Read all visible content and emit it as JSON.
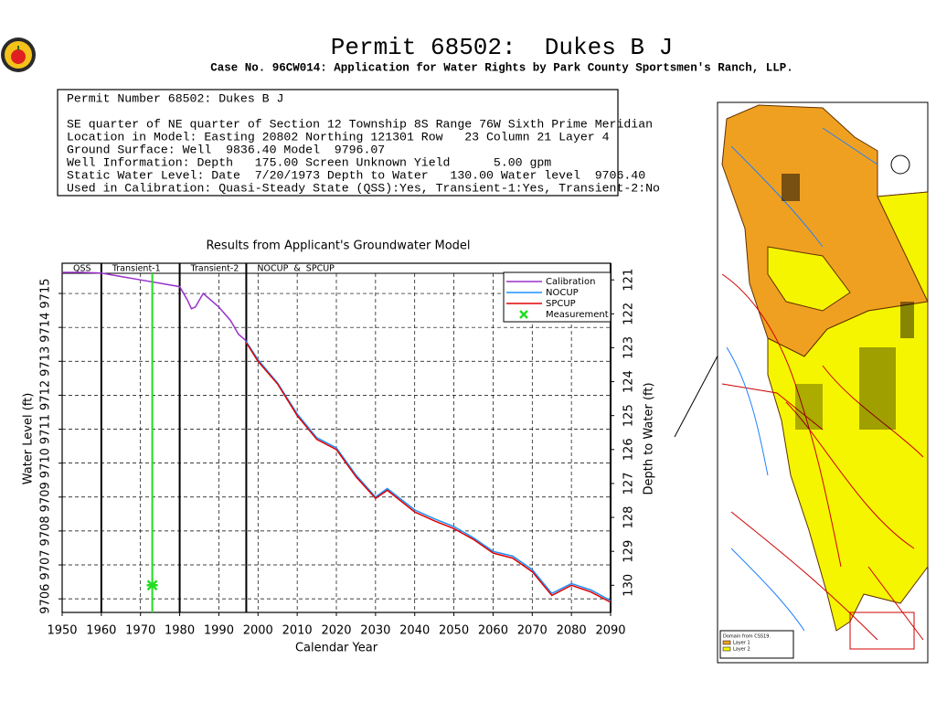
{
  "header": {
    "title": "Permit 68502:  Dukes B J",
    "subtitle": "Case No. 96CW014: Application for Water Rights by Park County Sportsmen's Ranch, LLP."
  },
  "info": {
    "lines": [
      "Permit Number 68502: Dukes B J",
      "SE quarter of NE quarter of Section 12 Township 8S Range 76W Sixth Prime Meridian",
      "Location in Model: Easting 20802 Northing 121301 Row   23 Column 21 Layer 4",
      "Ground Surface: Well  9836.40 Model  9796.07",
      "Well Information: Depth   175.00 Screen Unknown Yield      5.00 gpm",
      "Static Water Level: Date  7/20/1973 Depth to Water   130.00 Water level  9706.40",
      "Used in Calibration: Quasi-Steady State (QSS):Yes, Transient-1:Yes, Transient-2:No"
    ]
  },
  "chart_data": {
    "type": "line",
    "title": "Results from Applicant's Groundwater Model",
    "xlabel": "Calendar Year",
    "ylabel": "Water Level (ft)",
    "y2label": "Depth to Water (ft)",
    "xlim": [
      1950,
      2090
    ],
    "xticks": [
      1950,
      1960,
      1970,
      1980,
      1990,
      2000,
      2010,
      2020,
      2030,
      2040,
      2050,
      2060,
      2070,
      2080,
      2090
    ],
    "ylim": [
      9705.6,
      9715.89
    ],
    "yticks": [
      9706,
      9707,
      9708,
      9709,
      9710,
      9711,
      9712,
      9713,
      9714,
      9715
    ],
    "y2lim": [
      130.8,
      120.51
    ],
    "y2ticks": [
      121,
      122,
      123,
      124,
      125,
      126,
      127,
      128,
      129,
      130
    ],
    "grid": true,
    "legend": "upper right",
    "periods": [
      {
        "label": "QSS",
        "start": 1950,
        "end": 1960
      },
      {
        "label": "Transient-1",
        "start": 1960,
        "end": 1980
      },
      {
        "label": "Transient-2",
        "start": 1980,
        "end": 1997
      },
      {
        "label": "NOCUP  &  SPCUP",
        "start": 1997,
        "end": 2090
      }
    ],
    "series": [
      {
        "name": "Calibration",
        "color": "#9932cc",
        "x": [
          1950,
          1955,
          1960,
          1965,
          1970,
          1975,
          1980,
          1982,
          1983,
          1984,
          1986,
          1988,
          1990,
          1993,
          1995,
          1996,
          1997
        ],
        "values": [
          9715.62,
          9715.62,
          9715.6,
          9715.5,
          9715.4,
          9715.3,
          9715.2,
          9714.8,
          9714.55,
          9714.6,
          9715.0,
          9714.8,
          9714.6,
          9714.2,
          9713.8,
          9713.7,
          9713.6
        ]
      },
      {
        "name": "NOCUP",
        "color": "#1e90ff",
        "x": [
          1997,
          2000,
          2005,
          2010,
          2015,
          2020,
          2025,
          2030,
          2033,
          2040,
          2045,
          2050,
          2055,
          2060,
          2065,
          2070,
          2075,
          2080,
          2085,
          2090
        ],
        "values": [
          9713.58,
          9713.05,
          9712.36,
          9711.45,
          9710.75,
          9710.45,
          9709.65,
          9709.0,
          9709.25,
          9708.62,
          9708.36,
          9708.13,
          9707.8,
          9707.4,
          9707.26,
          9706.86,
          9706.16,
          9706.45,
          9706.26,
          9705.95
        ]
      },
      {
        "name": "SPCUP",
        "color": "#e00000",
        "x": [
          1997,
          2000,
          2005,
          2010,
          2015,
          2020,
          2025,
          2030,
          2033,
          2040,
          2045,
          2050,
          2055,
          2060,
          2065,
          2070,
          2075,
          2080,
          2085,
          2090
        ],
        "values": [
          9713.55,
          9713.0,
          9712.33,
          9711.4,
          9710.7,
          9710.4,
          9709.6,
          9708.96,
          9709.2,
          9708.56,
          9708.3,
          9708.07,
          9707.75,
          9707.35,
          9707.2,
          9706.8,
          9706.1,
          9706.4,
          9706.2,
          9705.9
        ]
      },
      {
        "name": "Measurement",
        "color": "#22dd22",
        "mode": "markers",
        "x": [
          1973
        ],
        "values": [
          9706.4
        ]
      }
    ]
  },
  "map": {
    "legend_title": "Domain from CSS19.",
    "layers": [
      "Layer 1",
      "Layer 2"
    ]
  }
}
